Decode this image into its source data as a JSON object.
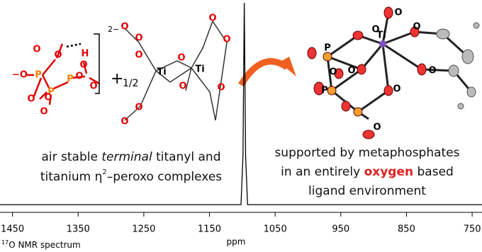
{
  "chart_data": {
    "type": "line",
    "x": [
      1469,
      1102,
      1099,
      1097,
      1095,
      1092,
      735
    ],
    "values": [
      1,
      1,
      25,
      100,
      25,
      1,
      1
    ],
    "color": "#000000",
    "xlim": [
      1469,
      735
    ],
    "ylim": [
      0,
      100
    ],
    "xticks": [
      1450,
      1350,
      1250,
      1150,
      1050,
      950,
      850,
      750
    ],
    "xlabel": "ppm",
    "spectrum_label": {
      "sup": "17",
      "text": "O NMR spectrum"
    }
  },
  "left_caption": {
    "line1_a": "air stable ",
    "line1_em": "terminal",
    "line1_b": " titanyl and",
    "line2_a": "titanium η",
    "line2_sup": "2",
    "line2_b": "–peroxo complexes"
  },
  "right_caption": {
    "line1": "supported by metaphosphates",
    "line2_a": "in an entirely ",
    "line2_strong": "oxygen",
    "line2_b": " based",
    "line3": "ligand environment"
  },
  "phosphate_labels": [
    "−O",
    "O",
    "O",
    "H",
    "P",
    "P",
    "P",
    "O",
    "O",
    "O",
    "O",
    "O",
    "O"
  ],
  "charge": "2−",
  "plus": "+",
  "fraction": "1/2",
  "titanium_labels": [
    "Ti",
    "Ti",
    "O",
    "O",
    "O",
    "O",
    "O",
    "O",
    "O",
    "O",
    "O",
    "O"
  ],
  "crystal_labels": [
    "O",
    "Ti",
    "O",
    "O",
    "P",
    "O",
    "O",
    "P",
    "O",
    "O",
    "O"
  ]
}
